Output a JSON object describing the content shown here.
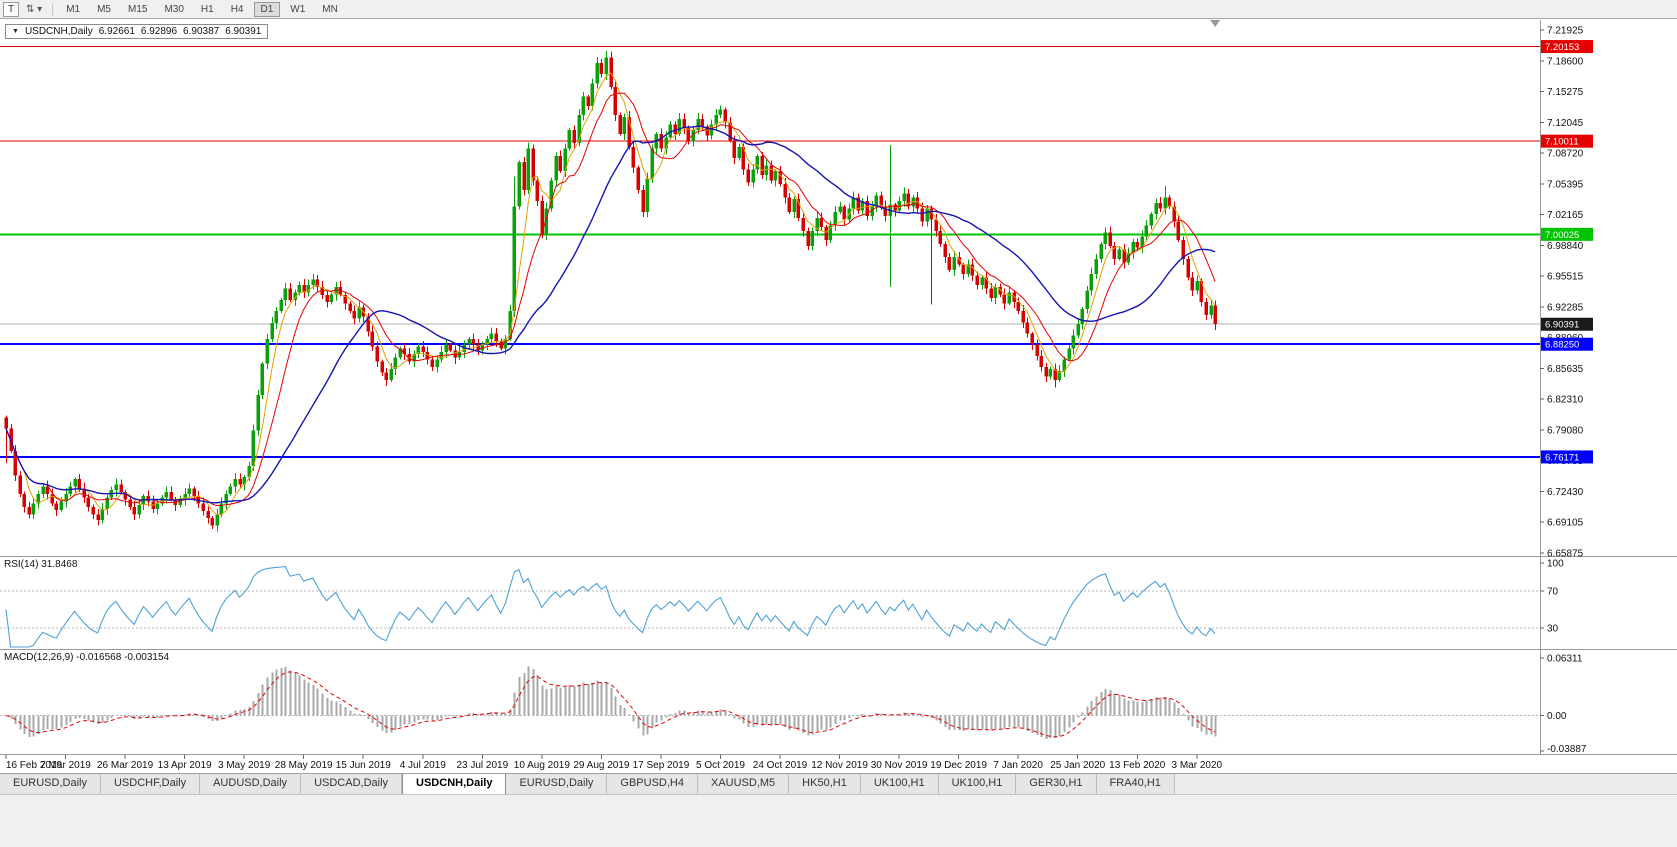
{
  "window": {
    "title_overlay": {
      "symbol": "USDCNH,Daily",
      "open": "6.92661",
      "high": "6.92896",
      "low": "6.90387",
      "close": "6.90391"
    }
  },
  "icons": {
    "collapse": "▼"
  },
  "toolbar": {
    "icons": [
      {
        "name": "chart-window-icon",
        "glyph": "T"
      },
      {
        "name": "cursor-select-icon",
        "glyph": "⇅"
      },
      {
        "name": "dropdown-arrow-icon",
        "glyph": "▾"
      }
    ],
    "timeframes": [
      "M1",
      "M5",
      "M15",
      "M30",
      "H1",
      "H4",
      "D1",
      "W1",
      "MN"
    ],
    "active_timeframe": "D1"
  },
  "colors": {
    "bull": "#0aa00a",
    "bear": "#d60000",
    "axis_text": "#111111",
    "grid": "#b5b5b5",
    "separator": "#9a9a9a",
    "histogram": "#a8a8a8",
    "signal": "#e60000",
    "bid_line": "#b0b0b0",
    "badge_text": "#ffffff",
    "current_badge": "#1a1a1a"
  },
  "chart_data": {
    "type": "candlestick",
    "symbol": "USDCNH",
    "timeframe": "Daily",
    "price_axis": {
      "top_value": 7.21925,
      "bottom_value": 6.65875,
      "labels": [
        "7.21925",
        "7.18600",
        "7.15275",
        "7.12045",
        "7.08720",
        "7.05395",
        "7.02165",
        "6.98840",
        "6.95515",
        "6.92285",
        "6.88960",
        "6.85635",
        "6.82310",
        "6.79080",
        "6.75755",
        "6.72430",
        "6.69105",
        "6.65875"
      ]
    },
    "x_axis": {
      "candles_per_label": 13,
      "date_labels": [
        "16 Feb 2019",
        "7 Mar 2019",
        "26 Mar 2019",
        "13 Apr 2019",
        "3 May 2019",
        "28 May 2019",
        "15 Jun 2019",
        "4 Jul 2019",
        "23 Jul 2019",
        "10 Aug 2019",
        "29 Aug 2019",
        "17 Sep 2019",
        "5 Oct 2019",
        "24 Oct 2019",
        "12 Nov 2019",
        "30 Nov 2019",
        "19 Dec 2019",
        "7 Jan 2020",
        "25 Jan 2020",
        "13 Feb 2020",
        "3 Mar 2020"
      ]
    },
    "levels": [
      {
        "value": 7.20153,
        "label": "7.20153",
        "color": "#e60000",
        "width": 1
      },
      {
        "value": 7.10011,
        "label": "7.10011",
        "color": "#e60000",
        "width": 1
      },
      {
        "value": 7.00025,
        "label": "7.00025",
        "color": "#00c400",
        "width": 2
      },
      {
        "value": 6.8825,
        "label": "6.88250",
        "color": "#0000ff",
        "width": 2
      },
      {
        "value": 6.76171,
        "label": "6.76171",
        "color": "#0000ff",
        "width": 2
      }
    ],
    "current_price": {
      "value": 6.90391,
      "label": "6.90391"
    },
    "closes": [
      6.792,
      6.768,
      6.742,
      6.722,
      6.708,
      6.7,
      6.712,
      6.722,
      6.73,
      6.722,
      6.712,
      6.705,
      6.714,
      6.722,
      6.73,
      6.738,
      6.728,
      6.718,
      6.708,
      6.7,
      6.694,
      6.706,
      6.718,
      6.726,
      6.732,
      6.724,
      6.716,
      6.708,
      6.7,
      6.71,
      6.72,
      6.714,
      6.706,
      6.712,
      6.718,
      6.724,
      6.716,
      6.71,
      6.716,
      6.722,
      6.728,
      6.72,
      6.712,
      6.704,
      6.696,
      6.688,
      6.7,
      6.712,
      6.722,
      6.73,
      6.738,
      6.732,
      6.74,
      6.752,
      6.79,
      6.828,
      6.862,
      6.888,
      6.905,
      6.918,
      6.93,
      6.942,
      6.93,
      6.938,
      6.946,
      6.938,
      6.946,
      6.952,
      6.944,
      6.935,
      6.928,
      6.936,
      6.944,
      6.935,
      6.926,
      6.918,
      6.91,
      6.922,
      6.912,
      6.896,
      6.88,
      6.864,
      6.852,
      6.844,
      6.856,
      6.868,
      6.878,
      6.872,
      6.864,
      6.872,
      6.88,
      6.874,
      6.866,
      6.858,
      6.866,
      6.874,
      6.882,
      6.876,
      6.868,
      6.874,
      6.882,
      6.888,
      6.882,
      6.876,
      6.882,
      6.888,
      6.894,
      6.886,
      6.878,
      6.888,
      6.918,
      7.03,
      7.078,
      7.048,
      7.092,
      7.058,
      7.036,
      7.0,
      7.028,
      7.058,
      7.084,
      7.068,
      7.092,
      7.112,
      7.098,
      7.128,
      7.148,
      7.138,
      7.162,
      7.184,
      7.172,
      7.19,
      7.158,
      7.128,
      7.108,
      7.126,
      7.094,
      7.072,
      7.048,
      7.024,
      7.06,
      7.092,
      7.108,
      7.092,
      7.104,
      7.118,
      7.108,
      7.124,
      7.114,
      7.1,
      7.112,
      7.124,
      7.116,
      7.106,
      7.118,
      7.128,
      7.134,
      7.12,
      7.1,
      7.082,
      7.094,
      7.07,
      7.056,
      7.07,
      7.084,
      7.064,
      7.074,
      7.058,
      7.068,
      7.054,
      7.04,
      7.024,
      7.038,
      7.018,
      7.004,
      6.988,
      7.004,
      7.018,
      7.008,
      6.994,
      7.01,
      7.024,
      7.03,
      7.016,
      7.028,
      7.04,
      7.026,
      7.036,
      7.02,
      7.03,
      7.042,
      7.03,
      7.02,
      7.032,
      7.026,
      7.036,
      7.044,
      7.03,
      7.04,
      7.028,
      7.014,
      7.028,
      7.016,
      7.004,
      6.99,
      6.976,
      6.962,
      6.976,
      6.968,
      6.958,
      6.968,
      6.956,
      6.946,
      6.954,
      6.942,
      6.932,
      6.944,
      6.936,
      6.926,
      6.938,
      6.928,
      6.918,
      6.906,
      6.894,
      6.882,
      6.87,
      6.858,
      6.848,
      6.856,
      6.844,
      6.854,
      6.866,
      6.878,
      6.892,
      6.904,
      6.92,
      6.94,
      6.958,
      6.974,
      6.99,
      7.002,
      6.988,
      6.974,
      6.984,
      6.97,
      6.98,
      6.992,
      6.986,
      6.998,
      7.01,
      7.022,
      7.034,
      7.028,
      7.04,
      7.03,
      7.014,
      6.994,
      6.974,
      6.954,
      6.94,
      6.95,
      6.928,
      6.914,
      6.924,
      6.904
    ],
    "wick_overrides": {
      "0": {
        "high": 6.806,
        "low": 6.755
      },
      "67": {
        "high": 6.958
      },
      "111": {
        "high": 7.062
      },
      "131": {
        "high": 7.197
      },
      "193": {
        "high": 7.096,
        "low": 6.944
      },
      "202": {
        "low": 6.925
      },
      "229": {
        "low": 6.836
      },
      "253": {
        "high": 7.052
      }
    },
    "moving_averages": [
      {
        "name": "fast-ma",
        "period": 5,
        "color": "#dea400",
        "width": 1
      },
      {
        "name": "mid-ma",
        "period": 10,
        "color": "#e60000",
        "width": 1
      },
      {
        "name": "slow-ma",
        "period": 27,
        "color": "#1414b4",
        "width": 1.4
      }
    ],
    "rsi": {
      "label": "RSI(14) 31.8468",
      "current": 31.8468,
      "axis_labels": [
        "100",
        "70",
        "30"
      ],
      "level_lines": [
        70,
        30
      ],
      "color": "#4da2d9"
    },
    "macd": {
      "label": "MACD(12,26,9) -0.016568 -0.003154",
      "main_value": "-0.016568",
      "signal_value": "-0.003154",
      "axis_labels": [
        "0.06311",
        "0.00",
        "-0.03887"
      ],
      "axis_top": 0.06311,
      "axis_bottom": -0.03887
    }
  },
  "tabs": {
    "items": [
      {
        "label": "EURUSD,Daily",
        "active": false
      },
      {
        "label": "USDCHF,Daily",
        "active": false
      },
      {
        "label": "AUDUSD,Daily",
        "active": false
      },
      {
        "label": "USDCAD,Daily",
        "active": false
      },
      {
        "label": "USDCNH,Daily",
        "active": true
      },
      {
        "label": "EURUSD,Daily",
        "active": false
      },
      {
        "label": "GBPUSD,H4",
        "active": false
      },
      {
        "label": "XAUUSD,M5",
        "active": false
      },
      {
        "label": "HK50,H1",
        "active": false
      },
      {
        "label": "UK100,H1",
        "active": false
      },
      {
        "label": "UK100,H1",
        "active": false
      },
      {
        "label": "GER30,H1",
        "active": false
      },
      {
        "label": "FRA40,H1",
        "active": false
      }
    ]
  }
}
